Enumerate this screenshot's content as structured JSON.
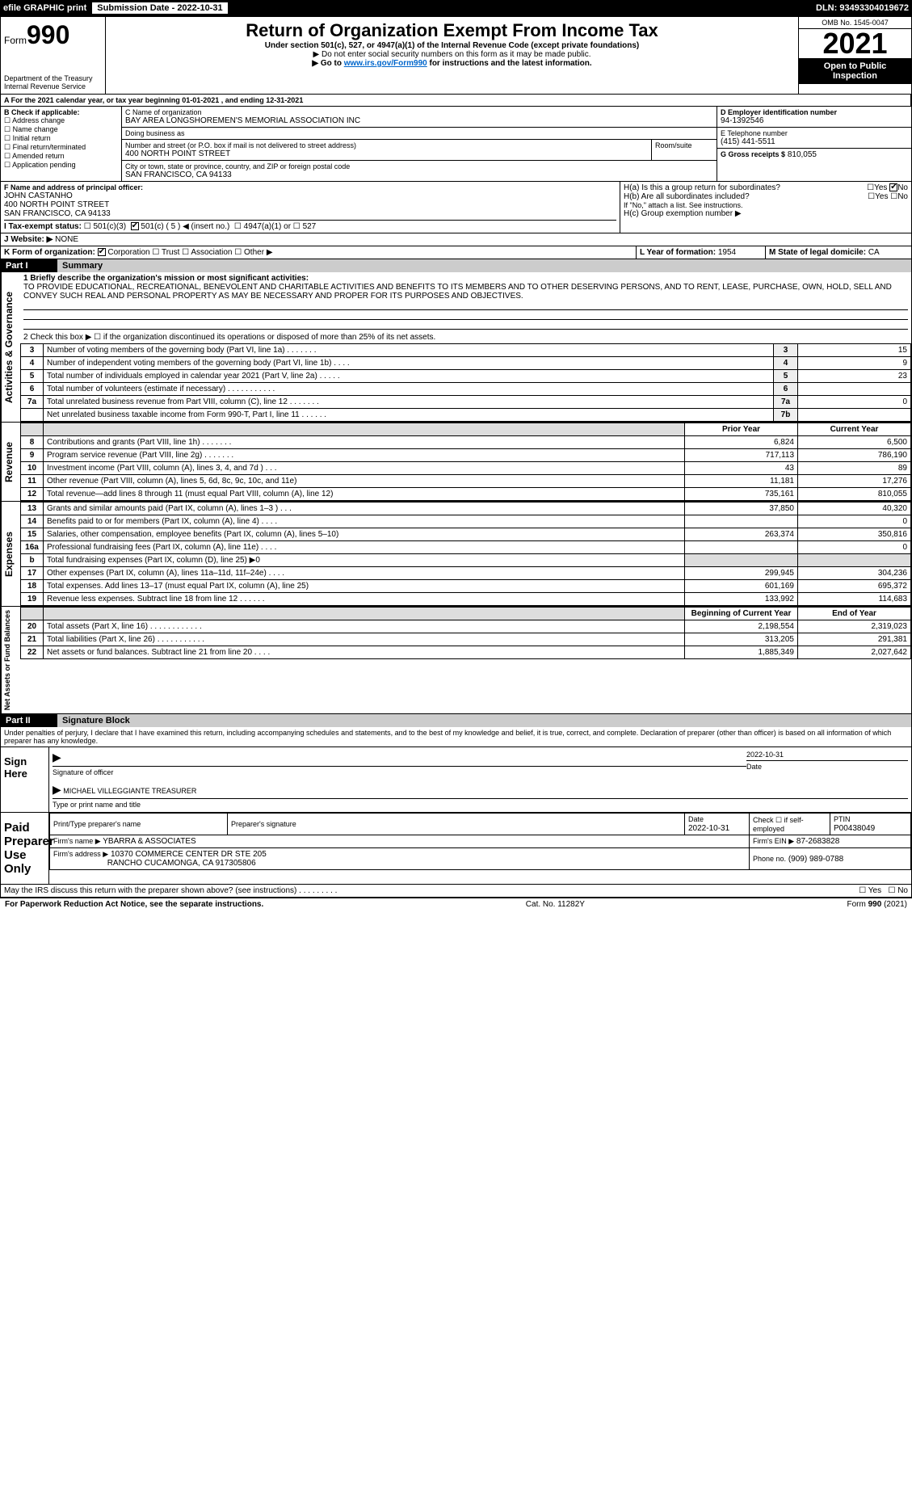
{
  "topbar": {
    "efile": "efile GRAPHIC print",
    "submission_label": "Submission Date - 2022-10-31",
    "dln": "DLN: 93493304019672"
  },
  "header": {
    "form_prefix": "Form",
    "form_number": "990",
    "dept": "Department of the Treasury\nInternal Revenue Service",
    "title": "Return of Organization Exempt From Income Tax",
    "subtitle": "Under section 501(c), 527, or 4947(a)(1) of the Internal Revenue Code (except private foundations)",
    "note1": "▶ Do not enter social security numbers on this form as it may be made public.",
    "note2_pre": "▶ Go to ",
    "note2_link": "www.irs.gov/Form990",
    "note2_post": " for instructions and the latest information.",
    "omb": "OMB No. 1545-0047",
    "year": "2021",
    "open_public": "Open to Public Inspection"
  },
  "period": {
    "line": "A For the 2021 calendar year, or tax year beginning 01-01-2021    , and ending 12-31-2021"
  },
  "boxB": {
    "label": "B Check if applicable:",
    "items": [
      "Address change",
      "Name change",
      "Initial return",
      "Final return/terminated",
      "Amended return",
      "Application pending"
    ]
  },
  "boxC": {
    "label": "C Name of organization",
    "name": "BAY AREA LONGSHOREMEN'S MEMORIAL ASSOCIATION INC",
    "dba_label": "Doing business as",
    "dba": "",
    "street_label": "Number and street (or P.O. box if mail is not delivered to street address)",
    "room_label": "Room/suite",
    "street": "400 NORTH POINT STREET",
    "city_label": "City or town, state or province, country, and ZIP or foreign postal code",
    "city": "SAN FRANCISCO, CA  94133"
  },
  "boxD": {
    "label": "D Employer identification number",
    "value": "94-1392546"
  },
  "boxE": {
    "label": "E Telephone number",
    "value": "(415) 441-5511"
  },
  "boxG": {
    "label": "G Gross receipts $",
    "value": "810,055"
  },
  "boxF": {
    "label": "F Name and address of principal officer:",
    "name": "JOHN CASTANHO",
    "addr1": "400 NORTH POINT STREET",
    "addr2": "SAN FRANCISCO, CA  94133"
  },
  "boxH": {
    "a": "H(a)  Is this a group return for subordinates?",
    "b": "H(b)  Are all subordinates included?",
    "note": "If \"No,\" attach a list. See instructions.",
    "c": "H(c)  Group exemption number ▶",
    "yes": "Yes",
    "no": "No"
  },
  "boxI": {
    "label": "I  Tax-exempt status:",
    "o1": "501(c)(3)",
    "o2": "501(c) ( 5 ) ◀ (insert no.)",
    "o3": "4947(a)(1) or",
    "o4": "527"
  },
  "boxJ": {
    "label": "J  Website: ▶",
    "value": "NONE"
  },
  "boxK": {
    "label": "K Form of organization:",
    "o1": "Corporation",
    "o2": "Trust",
    "o3": "Association",
    "o4": "Other ▶"
  },
  "boxL": {
    "label": "L Year of formation:",
    "value": "1954"
  },
  "boxM": {
    "label": "M State of legal domicile:",
    "value": "CA"
  },
  "partI": {
    "title": "Part I",
    "subtitle": "Summary",
    "mission_label": "1 Briefly describe the organization's mission or most significant activities:",
    "mission": "TO PROVIDE EDUCATIONAL, RECREATIONAL, BENEVOLENT AND CHARITABLE ACTIVITIES AND BENEFITS TO ITS MEMBERS AND TO OTHER DESERVING PERSONS, AND TO RENT, LEASE, PURCHASE, OWN, HOLD, SELL AND CONVEY SUCH REAL AND PERSONAL PROPERTY AS MAY BE NECESSARY AND PROPER FOR ITS PURPOSES AND OBJECTIVES."
  },
  "governance": {
    "vlabel": "Activities & Governance",
    "l2": "2  Check this box ▶ ☐ if the organization discontinued its operations or disposed of more than 25% of its net assets.",
    "rows": [
      {
        "n": "3",
        "t": "Number of voting members of the governing body (Part VI, line 1a)   .   .   .   .   .   .   .",
        "r": "3",
        "v": "15"
      },
      {
        "n": "4",
        "t": "Number of independent voting members of the governing body (Part VI, line 1b)  .   .   .   .",
        "r": "4",
        "v": "9"
      },
      {
        "n": "5",
        "t": "Total number of individuals employed in calendar year 2021 (Part V, line 2a)  .   .   .   .   .",
        "r": "5",
        "v": "23"
      },
      {
        "n": "6",
        "t": "Total number of volunteers (estimate if necessary)   .   .   .   .   .   .   .   .   .   .   .",
        "r": "6",
        "v": ""
      },
      {
        "n": "7a",
        "t": "Total unrelated business revenue from Part VIII, column (C), line 12  .   .   .   .   .   .   .",
        "r": "7a",
        "v": "0"
      },
      {
        "n": "",
        "t": "Net unrelated business taxable income from Form 990-T, Part I, line 11  .   .   .   .   .   .",
        "r": "7b",
        "v": ""
      }
    ]
  },
  "revenue": {
    "vlabel": "Revenue",
    "head_prior": "Prior Year",
    "head_curr": "Current Year",
    "rows": [
      {
        "n": "8",
        "t": "Contributions and grants (Part VIII, line 1h)  .   .   .   .   .   .   .",
        "p": "6,824",
        "c": "6,500"
      },
      {
        "n": "9",
        "t": "Program service revenue (Part VIII, line 2g)  .   .   .   .   .   .   .",
        "p": "717,113",
        "c": "786,190"
      },
      {
        "n": "10",
        "t": "Investment income (Part VIII, column (A), lines 3, 4, and 7d )  .   .   .",
        "p": "43",
        "c": "89"
      },
      {
        "n": "11",
        "t": "Other revenue (Part VIII, column (A), lines 5, 6d, 8c, 9c, 10c, and 11e)",
        "p": "11,181",
        "c": "17,276"
      },
      {
        "n": "12",
        "t": "Total revenue—add lines 8 through 11 (must equal Part VIII, column (A), line 12)",
        "p": "735,161",
        "c": "810,055"
      }
    ]
  },
  "expenses": {
    "vlabel": "Expenses",
    "rows": [
      {
        "n": "13",
        "t": "Grants and similar amounts paid (Part IX, column (A), lines 1–3 )  .   .   .",
        "p": "37,850",
        "c": "40,320"
      },
      {
        "n": "14",
        "t": "Benefits paid to or for members (Part IX, column (A), line 4)  .   .   .   .",
        "p": "",
        "c": "0"
      },
      {
        "n": "15",
        "t": "Salaries, other compensation, employee benefits (Part IX, column (A), lines 5–10)",
        "p": "263,374",
        "c": "350,816"
      },
      {
        "n": "16a",
        "t": "Professional fundraising fees (Part IX, column (A), line 11e)  .   .   .   .",
        "p": "",
        "c": "0"
      },
      {
        "n": "b",
        "t": "Total fundraising expenses (Part IX, column (D), line 25) ▶0",
        "p": "",
        "c": "",
        "shade": true
      },
      {
        "n": "17",
        "t": "Other expenses (Part IX, column (A), lines 11a–11d, 11f–24e)  .   .   .   .",
        "p": "299,945",
        "c": "304,236"
      },
      {
        "n": "18",
        "t": "Total expenses. Add lines 13–17 (must equal Part IX, column (A), line 25)",
        "p": "601,169",
        "c": "695,372"
      },
      {
        "n": "19",
        "t": "Revenue less expenses. Subtract line 18 from line 12  .   .   .   .   .   .",
        "p": "133,992",
        "c": "114,683"
      }
    ]
  },
  "netassets": {
    "vlabel": "Net Assets or Fund Balances",
    "head_begin": "Beginning of Current Year",
    "head_end": "End of Year",
    "rows": [
      {
        "n": "20",
        "t": "Total assets (Part X, line 16)  .   .   .   .   .   .   .   .   .   .   .   .",
        "p": "2,198,554",
        "c": "2,319,023"
      },
      {
        "n": "21",
        "t": "Total liabilities (Part X, line 26)  .   .   .   .   .   .   .   .   .   .   .",
        "p": "313,205",
        "c": "291,381"
      },
      {
        "n": "22",
        "t": "Net assets or fund balances. Subtract line 21 from line 20  .   .   .   .",
        "p": "1,885,349",
        "c": "2,027,642"
      }
    ]
  },
  "partII": {
    "title": "Part II",
    "subtitle": "Signature Block",
    "decl": "Under penalties of perjury, I declare that I have examined this return, including accompanying schedules and statements, and to the best of my knowledge and belief, it is true, correct, and complete. Declaration of preparer (other than officer) is based on all information of which preparer has any knowledge."
  },
  "sign": {
    "label": "Sign Here",
    "sig_of_officer": "Signature of officer",
    "date": "2022-10-31",
    "date_label": "Date",
    "name": "MICHAEL VILLEGGIANTE  TREASURER",
    "name_label": "Type or print name and title"
  },
  "preparer": {
    "label": "Paid Preparer Use Only",
    "print_label": "Print/Type preparer's name",
    "sig_label": "Preparer's signature",
    "date_label": "Date",
    "date": "2022-10-31",
    "check_label": "Check ☐ if self-employed",
    "ptin_label": "PTIN",
    "ptin": "P00438049",
    "firm_name_label": "Firm's name    ▶",
    "firm_name": "YBARRA & ASSOCIATES",
    "firm_ein_label": "Firm's EIN ▶",
    "firm_ein": "87-2683828",
    "firm_addr_label": "Firm's address ▶",
    "firm_addr1": "10370 COMMERCE CENTER DR STE 205",
    "firm_addr2": "RANCHO CUCAMONGA, CA  917305806",
    "phone_label": "Phone no.",
    "phone": "(909) 989-0788"
  },
  "discuss": {
    "text": "May the IRS discuss this return with the preparer shown above? (see instructions)   .   .   .   .   .   .   .   .   .",
    "yes": "Yes",
    "no": "No"
  },
  "footer": {
    "left": "For Paperwork Reduction Act Notice, see the separate instructions.",
    "mid": "Cat. No. 11282Y",
    "right": "Form 990 (2021)"
  },
  "colors": {
    "black": "#000000",
    "link": "#0066cc",
    "shade": "#dddddd"
  }
}
